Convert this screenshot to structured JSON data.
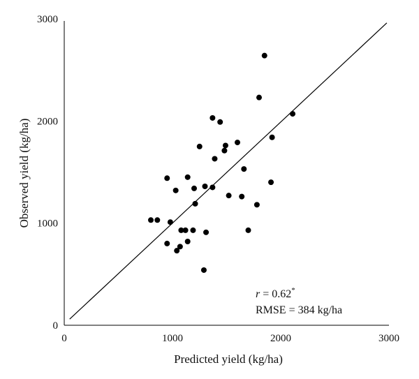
{
  "chart_data": {
    "type": "scatter",
    "title": "",
    "xlabel": "Predicted yield (kg/ha)",
    "ylabel": "Observed yield (kg/ha)",
    "xlim": [
      0,
      3000
    ],
    "ylim": [
      0,
      3000
    ],
    "xticks": [
      0,
      1000,
      2000,
      3000
    ],
    "yticks": [
      0,
      1000,
      2000,
      3000
    ],
    "grid": false,
    "legend": "none",
    "reference_line": {
      "x": [
        50,
        2980
      ],
      "y": [
        60,
        2960
      ]
    },
    "points": [
      {
        "x": 1850,
        "y": 2640
      },
      {
        "x": 1800,
        "y": 2230
      },
      {
        "x": 2110,
        "y": 2070
      },
      {
        "x": 1370,
        "y": 2030
      },
      {
        "x": 1440,
        "y": 1990
      },
      {
        "x": 1920,
        "y": 1840
      },
      {
        "x": 1600,
        "y": 1790
      },
      {
        "x": 1490,
        "y": 1760
      },
      {
        "x": 1250,
        "y": 1750
      },
      {
        "x": 1480,
        "y": 1710
      },
      {
        "x": 1390,
        "y": 1630
      },
      {
        "x": 1660,
        "y": 1530
      },
      {
        "x": 1140,
        "y": 1450
      },
      {
        "x": 950,
        "y": 1440
      },
      {
        "x": 1910,
        "y": 1400
      },
      {
        "x": 1300,
        "y": 1360
      },
      {
        "x": 1370,
        "y": 1350
      },
      {
        "x": 1200,
        "y": 1340
      },
      {
        "x": 1030,
        "y": 1320
      },
      {
        "x": 1520,
        "y": 1270
      },
      {
        "x": 1640,
        "y": 1260
      },
      {
        "x": 1210,
        "y": 1190
      },
      {
        "x": 1780,
        "y": 1180
      },
      {
        "x": 800,
        "y": 1030
      },
      {
        "x": 860,
        "y": 1030
      },
      {
        "x": 980,
        "y": 1010
      },
      {
        "x": 1080,
        "y": 930
      },
      {
        "x": 1120,
        "y": 930
      },
      {
        "x": 1190,
        "y": 930
      },
      {
        "x": 1700,
        "y": 930
      },
      {
        "x": 1310,
        "y": 910
      },
      {
        "x": 1140,
        "y": 820
      },
      {
        "x": 950,
        "y": 800
      },
      {
        "x": 1070,
        "y": 770
      },
      {
        "x": 1040,
        "y": 730
      },
      {
        "x": 1290,
        "y": 540
      }
    ],
    "annotations": {
      "r_symbol": "r",
      "r_value": " = 0.62",
      "r_mark": "*",
      "rmse": "RMSE = 384 kg/ha"
    }
  }
}
